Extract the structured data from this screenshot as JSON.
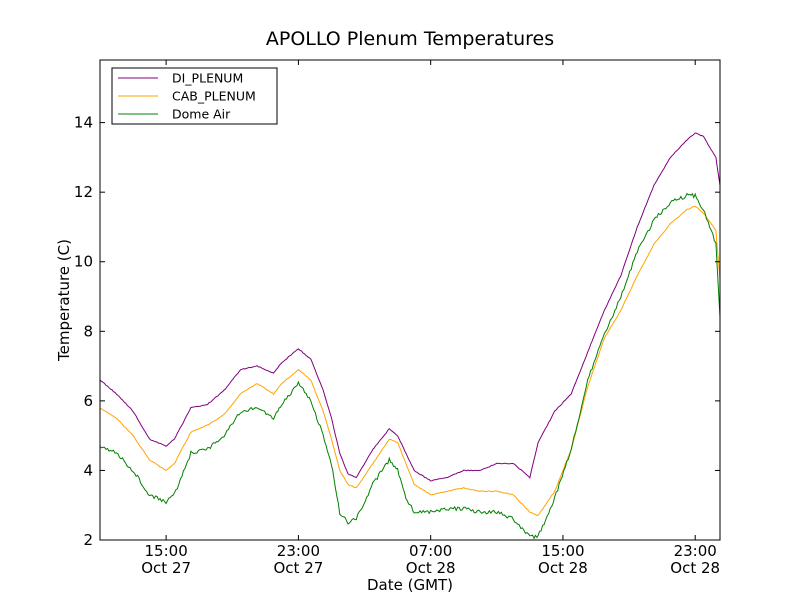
{
  "chart_data": {
    "type": "line",
    "title": "APOLLO Plenum Temperatures",
    "xlabel": "Date (GMT)",
    "ylabel": "Temperature (C)",
    "xlim": [
      "2013-10-27 11:00",
      "2013-10-29 00:30"
    ],
    "ylim": [
      2,
      15.8
    ],
    "yticks": [
      2,
      4,
      6,
      8,
      10,
      12,
      14
    ],
    "xticks": [
      {
        "time": "2013-10-27 15:00",
        "label1": "15:00",
        "label2": "Oct 27"
      },
      {
        "time": "2013-10-27 23:00",
        "label1": "23:00",
        "label2": "Oct 27"
      },
      {
        "time": "2013-10-28 07:00",
        "label1": "07:00",
        "label2": "Oct 28"
      },
      {
        "time": "2013-10-28 15:00",
        "label1": "15:00",
        "label2": "Oct 28"
      },
      {
        "time": "2013-10-28 23:00",
        "label1": "23:00",
        "label2": "Oct 28"
      }
    ],
    "legend_position": "top-left",
    "grid": false,
    "series": [
      {
        "name": "DI_PLENUM",
        "color": "#800080",
        "points": [
          [
            "2013-10-27 11:00",
            6.6
          ],
          [
            "2013-10-27 12:00",
            6.2
          ],
          [
            "2013-10-27 13:00",
            5.7
          ],
          [
            "2013-10-27 14:00",
            4.9
          ],
          [
            "2013-10-27 15:00",
            4.7
          ],
          [
            "2013-10-27 15:30",
            4.9
          ],
          [
            "2013-10-27 16:30",
            5.8
          ],
          [
            "2013-10-27 17:30",
            5.9
          ],
          [
            "2013-10-27 18:30",
            6.3
          ],
          [
            "2013-10-27 19:30",
            6.9
          ],
          [
            "2013-10-27 20:30",
            7.0
          ],
          [
            "2013-10-27 21:30",
            6.8
          ],
          [
            "2013-10-27 22:00",
            7.1
          ],
          [
            "2013-10-27 23:00",
            7.5
          ],
          [
            "2013-10-27 23:45",
            7.2
          ],
          [
            "2013-10-28 00:30",
            6.3
          ],
          [
            "2013-10-28 01:00",
            5.5
          ],
          [
            "2013-10-28 01:30",
            4.5
          ],
          [
            "2013-10-28 02:00",
            3.9
          ],
          [
            "2013-10-28 02:30",
            3.8
          ],
          [
            "2013-10-28 03:30",
            4.6
          ],
          [
            "2013-10-28 04:30",
            5.2
          ],
          [
            "2013-10-28 05:00",
            5.0
          ],
          [
            "2013-10-28 05:30",
            4.5
          ],
          [
            "2013-10-28 06:00",
            4.0
          ],
          [
            "2013-10-28 07:00",
            3.7
          ],
          [
            "2013-10-28 08:00",
            3.8
          ],
          [
            "2013-10-28 09:00",
            4.0
          ],
          [
            "2013-10-28 10:00",
            4.0
          ],
          [
            "2013-10-28 11:00",
            4.2
          ],
          [
            "2013-10-28 12:00",
            4.2
          ],
          [
            "2013-10-28 13:00",
            3.8
          ],
          [
            "2013-10-28 13:30",
            4.8
          ],
          [
            "2013-10-28 14:30",
            5.7
          ],
          [
            "2013-10-28 15:30",
            6.2
          ],
          [
            "2013-10-28 16:30",
            7.4
          ],
          [
            "2013-10-28 17:30",
            8.6
          ],
          [
            "2013-10-28 18:30",
            9.6
          ],
          [
            "2013-10-28 19:30",
            11.0
          ],
          [
            "2013-10-28 20:30",
            12.2
          ],
          [
            "2013-10-28 21:30",
            13.0
          ],
          [
            "2013-10-28 22:30",
            13.5
          ],
          [
            "2013-10-28 23:00",
            13.7
          ],
          [
            "2013-10-28 23:30",
            13.6
          ],
          [
            "2013-10-29 00:15",
            13.0
          ],
          [
            "2013-10-29 00:30",
            12.2
          ]
        ]
      },
      {
        "name": "CAB_PLENUM",
        "color": "#ffa500",
        "points": [
          [
            "2013-10-27 11:00",
            5.8
          ],
          [
            "2013-10-27 12:00",
            5.5
          ],
          [
            "2013-10-27 13:00",
            5.0
          ],
          [
            "2013-10-27 14:00",
            4.3
          ],
          [
            "2013-10-27 15:00",
            4.0
          ],
          [
            "2013-10-27 15:30",
            4.2
          ],
          [
            "2013-10-27 16:30",
            5.1
          ],
          [
            "2013-10-27 17:30",
            5.3
          ],
          [
            "2013-10-27 18:30",
            5.6
          ],
          [
            "2013-10-27 19:30",
            6.2
          ],
          [
            "2013-10-27 20:30",
            6.5
          ],
          [
            "2013-10-27 21:30",
            6.2
          ],
          [
            "2013-10-27 22:00",
            6.5
          ],
          [
            "2013-10-27 23:00",
            6.9
          ],
          [
            "2013-10-27 23:45",
            6.6
          ],
          [
            "2013-10-28 00:30",
            5.7
          ],
          [
            "2013-10-28 01:00",
            4.9
          ],
          [
            "2013-10-28 01:30",
            4.0
          ],
          [
            "2013-10-28 02:00",
            3.6
          ],
          [
            "2013-10-28 02:30",
            3.5
          ],
          [
            "2013-10-28 03:30",
            4.2
          ],
          [
            "2013-10-28 04:30",
            4.9
          ],
          [
            "2013-10-28 05:00",
            4.8
          ],
          [
            "2013-10-28 05:30",
            4.2
          ],
          [
            "2013-10-28 06:00",
            3.6
          ],
          [
            "2013-10-28 07:00",
            3.3
          ],
          [
            "2013-10-28 08:00",
            3.4
          ],
          [
            "2013-10-28 09:00",
            3.5
          ],
          [
            "2013-10-28 10:00",
            3.4
          ],
          [
            "2013-10-28 11:00",
            3.4
          ],
          [
            "2013-10-28 12:00",
            3.3
          ],
          [
            "2013-10-28 13:00",
            2.8
          ],
          [
            "2013-10-28 13:30",
            2.7
          ],
          [
            "2013-10-28 14:30",
            3.4
          ],
          [
            "2013-10-28 15:30",
            4.6
          ],
          [
            "2013-10-28 16:30",
            6.4
          ],
          [
            "2013-10-28 17:30",
            7.8
          ],
          [
            "2013-10-28 18:30",
            8.6
          ],
          [
            "2013-10-28 19:30",
            9.6
          ],
          [
            "2013-10-28 20:30",
            10.5
          ],
          [
            "2013-10-28 21:30",
            11.1
          ],
          [
            "2013-10-28 22:30",
            11.5
          ],
          [
            "2013-10-28 23:00",
            11.6
          ],
          [
            "2013-10-28 23:30",
            11.4
          ],
          [
            "2013-10-29 00:15",
            10.9
          ],
          [
            "2013-10-29 00:30",
            9.5
          ]
        ]
      },
      {
        "name": "Dome Air",
        "color": "#008000",
        "points": [
          [
            "2013-10-27 11:00",
            4.7
          ],
          [
            "2013-10-27 12:00",
            4.5
          ],
          [
            "2013-10-27 13:00",
            4.0
          ],
          [
            "2013-10-27 14:00",
            3.3
          ],
          [
            "2013-10-27 15:00",
            3.1
          ],
          [
            "2013-10-27 15:30",
            3.3
          ],
          [
            "2013-10-27 16:30",
            4.5
          ],
          [
            "2013-10-27 17:30",
            4.6
          ],
          [
            "2013-10-27 18:30",
            5.0
          ],
          [
            "2013-10-27 19:30",
            5.7
          ],
          [
            "2013-10-27 20:30",
            5.8
          ],
          [
            "2013-10-27 21:30",
            5.5
          ],
          [
            "2013-10-27 22:00",
            5.9
          ],
          [
            "2013-10-27 23:00",
            6.5
          ],
          [
            "2013-10-27 23:45",
            6.0
          ],
          [
            "2013-10-28 00:30",
            5.0
          ],
          [
            "2013-10-28 01:00",
            4.2
          ],
          [
            "2013-10-28 01:30",
            2.8
          ],
          [
            "2013-10-28 02:00",
            2.5
          ],
          [
            "2013-10-28 02:30",
            2.6
          ],
          [
            "2013-10-28 03:30",
            3.6
          ],
          [
            "2013-10-28 04:30",
            4.3
          ],
          [
            "2013-10-28 05:00",
            4.0
          ],
          [
            "2013-10-28 05:30",
            3.2
          ],
          [
            "2013-10-28 06:00",
            2.8
          ],
          [
            "2013-10-28 07:00",
            2.8
          ],
          [
            "2013-10-28 08:00",
            2.9
          ],
          [
            "2013-10-28 09:00",
            2.9
          ],
          [
            "2013-10-28 10:00",
            2.8
          ],
          [
            "2013-10-28 11:00",
            2.8
          ],
          [
            "2013-10-28 12:00",
            2.6
          ],
          [
            "2013-10-28 13:00",
            2.1
          ],
          [
            "2013-10-28 13:30",
            2.1
          ],
          [
            "2013-10-28 14:30",
            3.2
          ],
          [
            "2013-10-28 15:30",
            4.6
          ],
          [
            "2013-10-28 16:30",
            6.6
          ],
          [
            "2013-10-28 17:30",
            7.9
          ],
          [
            "2013-10-28 18:30",
            9.0
          ],
          [
            "2013-10-28 19:30",
            10.3
          ],
          [
            "2013-10-28 20:30",
            11.2
          ],
          [
            "2013-10-28 21:30",
            11.7
          ],
          [
            "2013-10-28 22:30",
            11.9
          ],
          [
            "2013-10-28 23:00",
            11.9
          ],
          [
            "2013-10-28 23:30",
            11.5
          ],
          [
            "2013-10-29 00:15",
            10.5
          ],
          [
            "2013-10-29 00:30",
            8.4
          ]
        ]
      }
    ]
  }
}
